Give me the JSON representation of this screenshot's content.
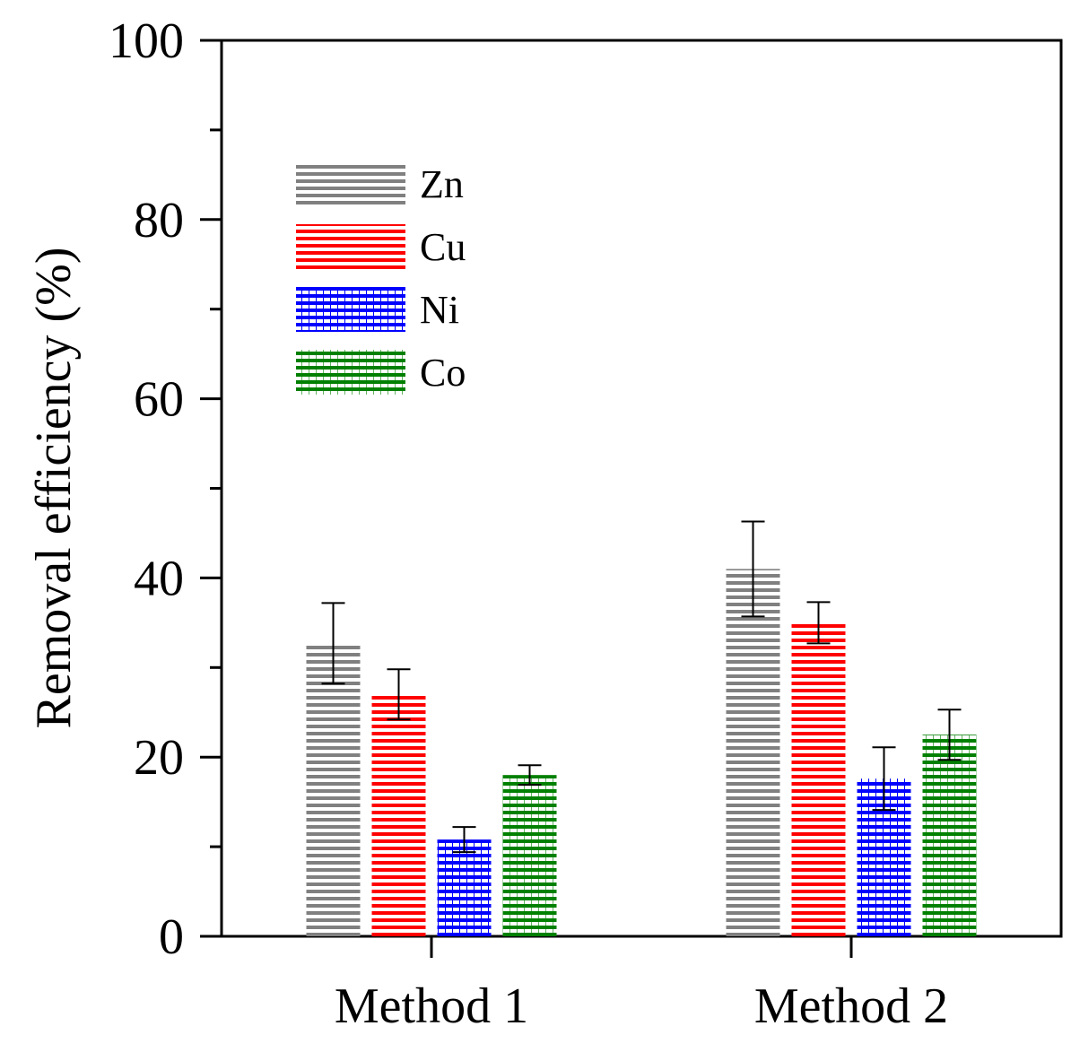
{
  "chart_data": {
    "type": "bar",
    "title": "",
    "xlabel": "",
    "ylabel": "Removal efficiency (%)",
    "ylim": [
      0,
      100
    ],
    "yticks": [
      0,
      20,
      40,
      60,
      80,
      100
    ],
    "categories": [
      "Method 1",
      "Method 2"
    ],
    "series": [
      {
        "name": "Zn",
        "color": "#808080",
        "values": [
          32.7,
          41.0
        ],
        "errors": [
          4.5,
          5.3
        ]
      },
      {
        "name": "Cu",
        "color": "#ff0000",
        "values": [
          27.0,
          35.0
        ],
        "errors": [
          2.8,
          2.3
        ]
      },
      {
        "name": "Ni",
        "color": "#0000ff",
        "values": [
          10.8,
          17.6
        ],
        "errors": [
          1.4,
          3.5
        ]
      },
      {
        "name": "Co",
        "color": "#008000",
        "values": [
          18.0,
          22.5
        ],
        "errors": [
          1.1,
          2.8
        ]
      }
    ],
    "legend_position": "top-left"
  }
}
